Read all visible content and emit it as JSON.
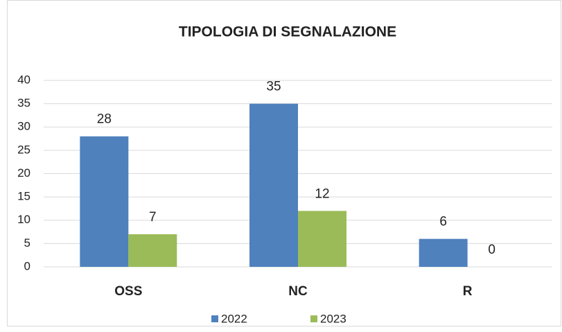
{
  "chart_data": {
    "type": "bar",
    "title": "TIPOLOGIA  DI SEGNALAZIONE",
    "categories": [
      "OSS",
      "NC",
      "R"
    ],
    "series": [
      {
        "name": "2022",
        "color": "#4f81bd",
        "values": [
          28,
          35,
          6
        ]
      },
      {
        "name": "2023",
        "color": "#9bbb59",
        "values": [
          7,
          12,
          0
        ]
      }
    ],
    "ylim": [
      0,
      40
    ],
    "yticks": [
      0,
      5,
      10,
      15,
      20,
      25,
      30,
      35,
      40
    ],
    "grid": true,
    "legend": "bottom"
  }
}
